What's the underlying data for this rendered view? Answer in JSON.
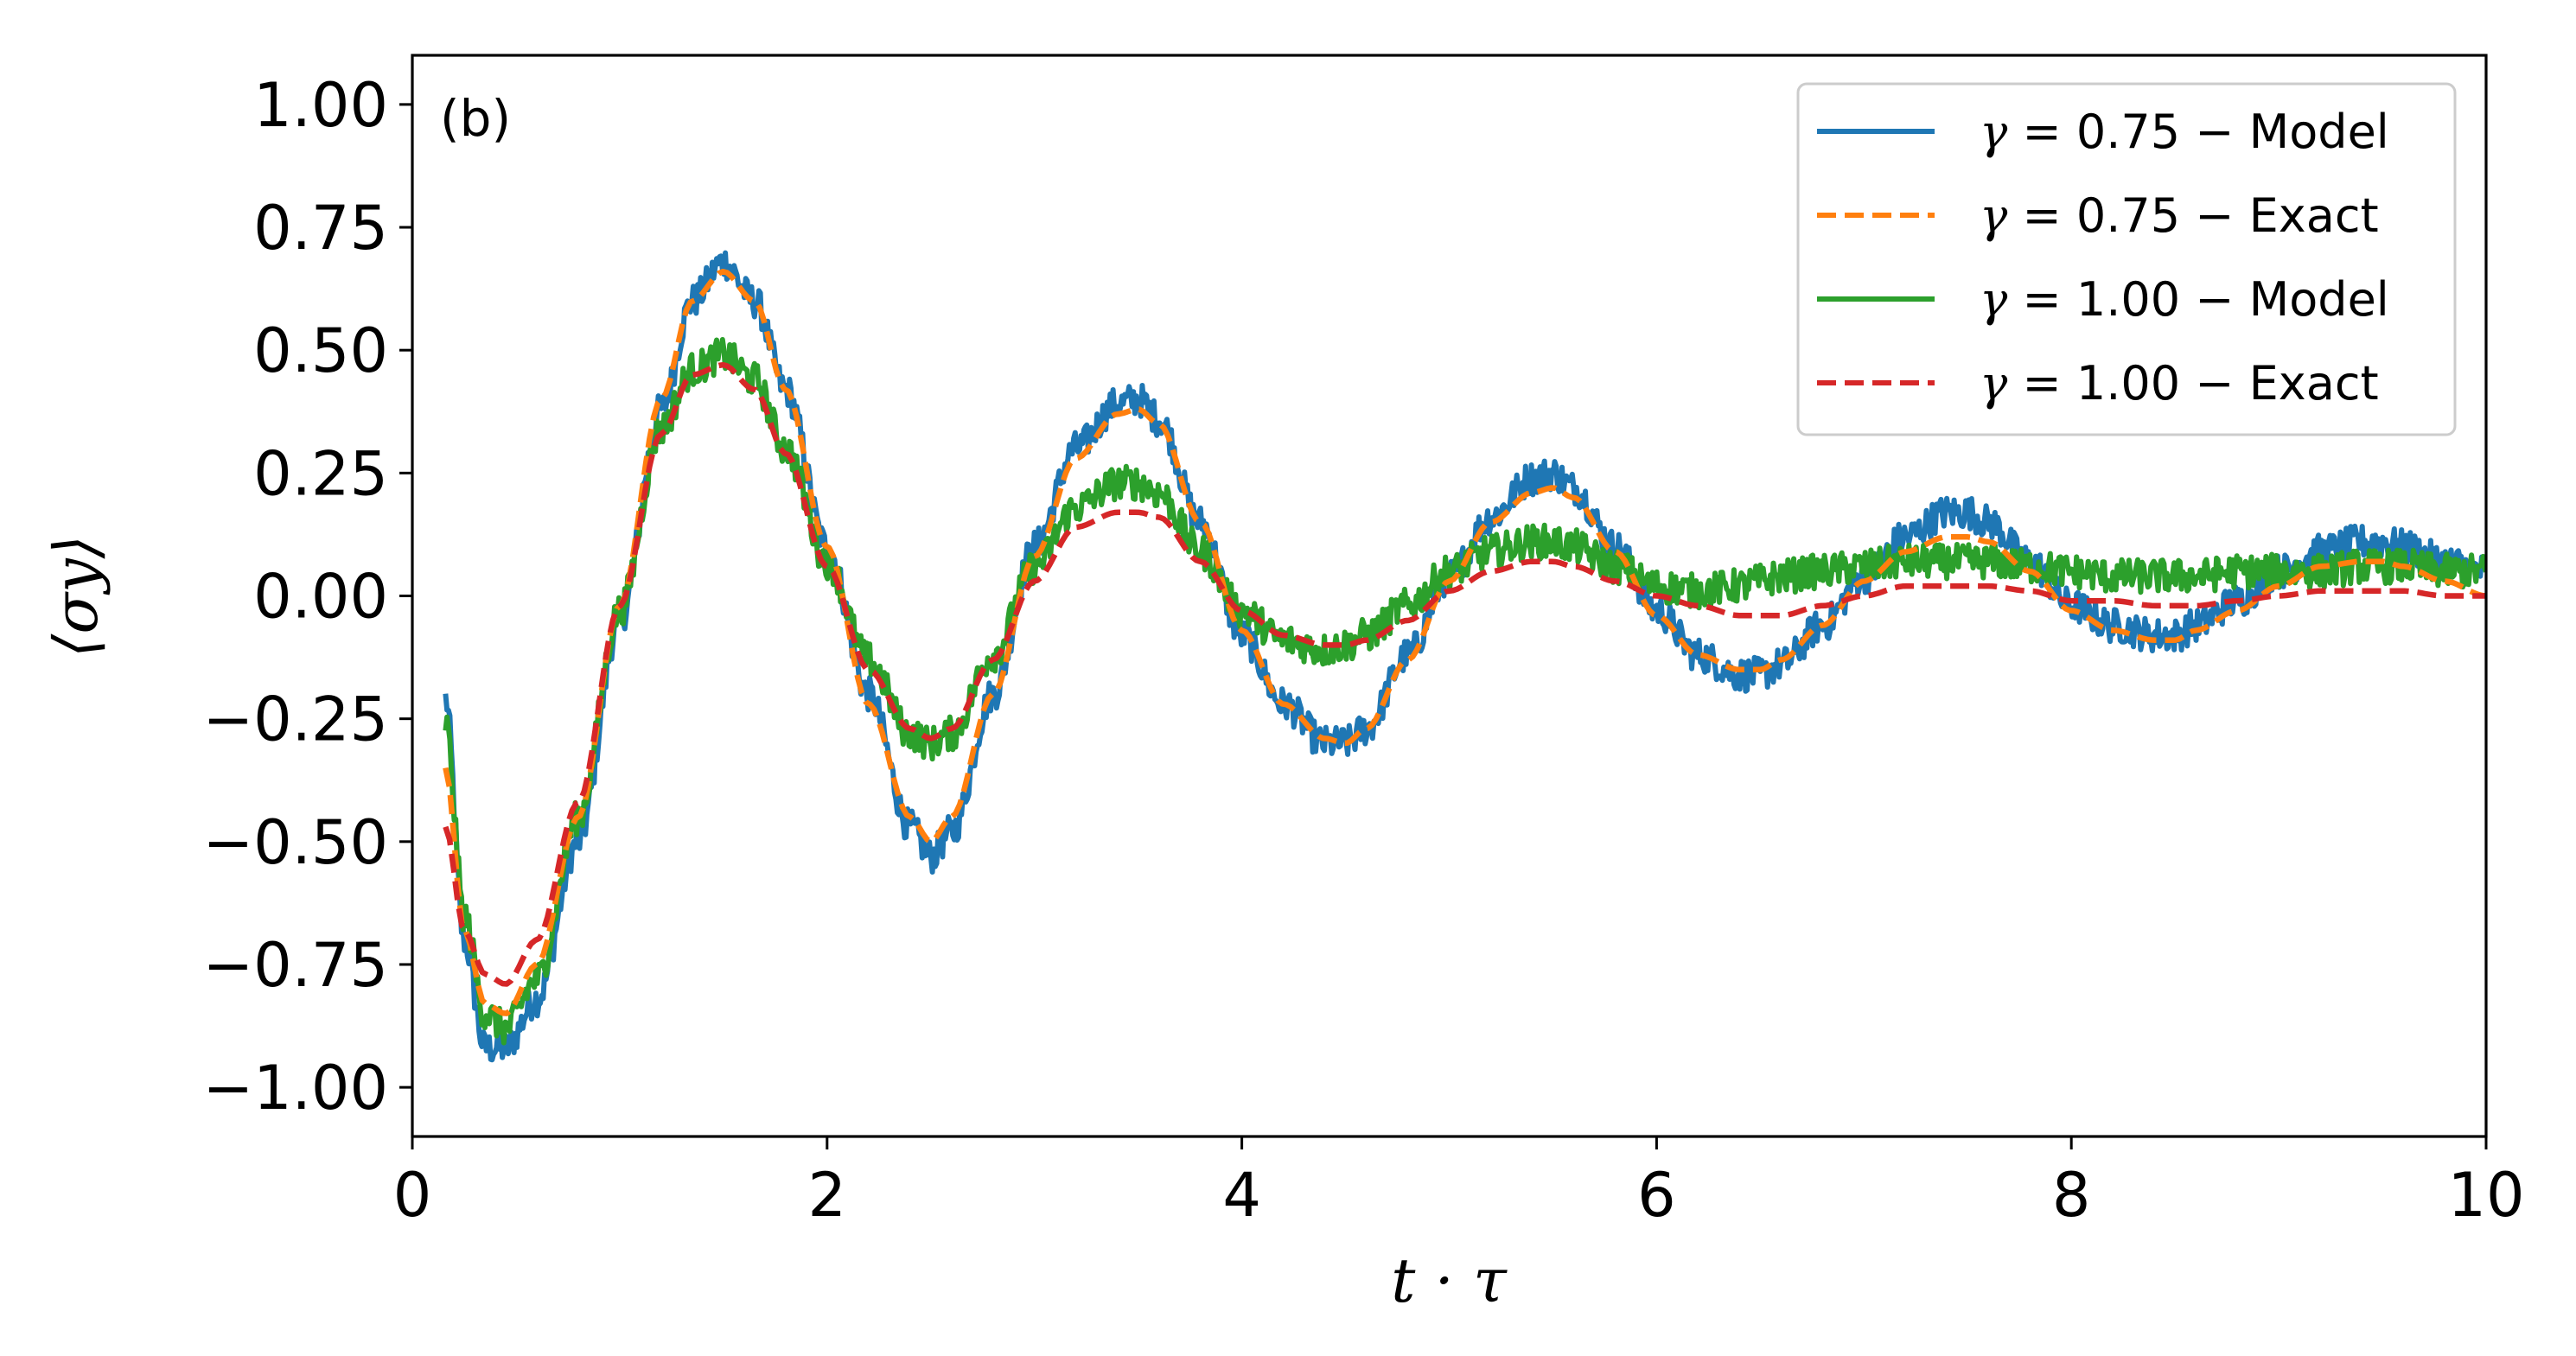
{
  "chart_data": {
    "type": "line",
    "panel_label": "(b)",
    "xlabel": "t · τ",
    "ylabel": "⟨σy⟩",
    "xlim": [
      0,
      10
    ],
    "ylim": [
      -1.1,
      1.1
    ],
    "xticks": [
      0,
      2,
      4,
      6,
      8,
      10
    ],
    "xtick_labels": [
      "0",
      "2",
      "4",
      "6",
      "8",
      "10"
    ],
    "yticks": [
      -1.0,
      -0.75,
      -0.5,
      -0.25,
      0.0,
      0.25,
      0.5,
      0.75,
      1.0
    ],
    "ytick_labels": [
      "−1.00",
      "−0.75",
      "−0.50",
      "−0.25",
      "0.00",
      "0.25",
      "0.50",
      "0.75",
      "1.00"
    ],
    "grid": false,
    "legend_position": "top-right",
    "series": [
      {
        "name": "γ = 0.75 − Model",
        "legend_symbol": "γ",
        "legend_text": " = 0.75 − Model",
        "color": "#1f77b4",
        "style": "solid",
        "noisy": true,
        "x": [
          0.16,
          0.25,
          0.35,
          0.45,
          0.6,
          0.8,
          1.0,
          1.2,
          1.35,
          1.5,
          1.65,
          1.8,
          2.0,
          2.2,
          2.4,
          2.5,
          2.6,
          2.8,
          3.0,
          3.2,
          3.4,
          3.5,
          3.6,
          3.8,
          4.0,
          4.2,
          4.4,
          4.5,
          4.6,
          4.8,
          5.0,
          5.2,
          5.4,
          5.5,
          5.6,
          5.8,
          6.0,
          6.2,
          6.4,
          6.5,
          6.6,
          6.8,
          7.0,
          7.2,
          7.4,
          7.5,
          7.6,
          7.8,
          8.0,
          8.2,
          8.4,
          8.5,
          8.6,
          8.8,
          9.0,
          9.2,
          9.4,
          9.5,
          9.6,
          9.8,
          10.0
        ],
        "y": [
          -0.21,
          -0.7,
          -0.92,
          -0.92,
          -0.82,
          -0.5,
          -0.05,
          0.38,
          0.6,
          0.68,
          0.6,
          0.42,
          0.1,
          -0.2,
          -0.47,
          -0.53,
          -0.48,
          -0.2,
          0.1,
          0.3,
          0.39,
          0.4,
          0.36,
          0.15,
          -0.08,
          -0.22,
          -0.3,
          -0.3,
          -0.27,
          -0.12,
          0.04,
          0.16,
          0.24,
          0.25,
          0.22,
          0.1,
          -0.03,
          -0.12,
          -0.16,
          -0.16,
          -0.14,
          -0.06,
          0.04,
          0.12,
          0.17,
          0.17,
          0.15,
          0.07,
          -0.02,
          -0.06,
          -0.08,
          -0.08,
          -0.06,
          -0.01,
          0.05,
          0.09,
          0.11,
          0.11,
          0.1,
          0.07,
          0.05
        ]
      },
      {
        "name": "γ = 0.75 − Exact",
        "legend_symbol": "γ",
        "legend_text": " = 0.75 − Exact",
        "color": "#ff7f0e",
        "style": "dashed",
        "noisy": false,
        "x": [
          0.16,
          0.25,
          0.35,
          0.45,
          0.6,
          0.8,
          1.0,
          1.2,
          1.35,
          1.5,
          1.65,
          1.8,
          2.0,
          2.2,
          2.4,
          2.5,
          2.6,
          2.8,
          3.0,
          3.2,
          3.4,
          3.5,
          3.6,
          3.8,
          4.0,
          4.2,
          4.4,
          4.5,
          4.6,
          4.8,
          5.0,
          5.2,
          5.4,
          5.5,
          5.6,
          5.8,
          6.0,
          6.2,
          6.4,
          6.5,
          6.6,
          6.8,
          7.0,
          7.2,
          7.4,
          7.5,
          7.6,
          7.8,
          8.0,
          8.2,
          8.4,
          8.5,
          8.6,
          8.8,
          9.0,
          9.2,
          9.4,
          9.5,
          9.6,
          9.8,
          10.0
        ],
        "y": [
          -0.35,
          -0.68,
          -0.83,
          -0.85,
          -0.75,
          -0.45,
          -0.02,
          0.4,
          0.6,
          0.66,
          0.6,
          0.42,
          0.1,
          -0.22,
          -0.45,
          -0.5,
          -0.45,
          -0.2,
          0.08,
          0.28,
          0.37,
          0.38,
          0.35,
          0.15,
          -0.07,
          -0.22,
          -0.29,
          -0.3,
          -0.27,
          -0.13,
          0.03,
          0.15,
          0.21,
          0.22,
          0.2,
          0.09,
          -0.04,
          -0.12,
          -0.15,
          -0.15,
          -0.13,
          -0.06,
          0.03,
          0.09,
          0.12,
          0.12,
          0.11,
          0.05,
          -0.03,
          -0.07,
          -0.09,
          -0.09,
          -0.07,
          -0.03,
          0.02,
          0.06,
          0.07,
          0.07,
          0.06,
          0.03,
          0.0
        ]
      },
      {
        "name": "γ = 1.00 − Model",
        "legend_symbol": "γ",
        "legend_text": " = 1.00 − Model",
        "color": "#2ca02c",
        "style": "solid",
        "noisy": true,
        "x": [
          0.16,
          0.25,
          0.35,
          0.45,
          0.6,
          0.8,
          1.0,
          1.2,
          1.35,
          1.5,
          1.65,
          1.8,
          2.0,
          2.2,
          2.4,
          2.5,
          2.6,
          2.8,
          3.0,
          3.2,
          3.4,
          3.5,
          3.6,
          3.8,
          4.0,
          4.2,
          4.4,
          4.5,
          4.6,
          4.8,
          5.0,
          5.2,
          5.4,
          5.5,
          5.6,
          5.8,
          6.0,
          6.2,
          6.4,
          6.5,
          6.6,
          6.8,
          7.0,
          7.2,
          7.4,
          7.5,
          7.6,
          7.8,
          8.0,
          8.2,
          8.4,
          8.5,
          8.6,
          8.8,
          9.0,
          9.2,
          9.4,
          9.5,
          9.6,
          9.8,
          10.0
        ],
        "y": [
          -0.26,
          -0.65,
          -0.85,
          -0.88,
          -0.78,
          -0.45,
          -0.03,
          0.34,
          0.46,
          0.49,
          0.44,
          0.3,
          0.07,
          -0.13,
          -0.28,
          -0.3,
          -0.28,
          -0.12,
          0.06,
          0.18,
          0.23,
          0.23,
          0.21,
          0.09,
          -0.03,
          -0.09,
          -0.11,
          -0.1,
          -0.08,
          -0.02,
          0.05,
          0.09,
          0.11,
          0.11,
          0.1,
          0.06,
          0.02,
          0.01,
          0.02,
          0.03,
          0.04,
          0.05,
          0.06,
          0.07,
          0.07,
          0.07,
          0.07,
          0.06,
          0.05,
          0.04,
          0.04,
          0.04,
          0.04,
          0.05,
          0.05,
          0.05,
          0.06,
          0.06,
          0.06,
          0.05,
          0.05
        ]
      },
      {
        "name": "γ = 1.00 − Exact",
        "legend_symbol": "γ",
        "legend_text": " = 1.00 − Exact",
        "color": "#d62728",
        "style": "dashed",
        "noisy": false,
        "x": [
          0.16,
          0.25,
          0.35,
          0.45,
          0.6,
          0.8,
          1.0,
          1.2,
          1.35,
          1.5,
          1.65,
          1.8,
          2.0,
          2.2,
          2.4,
          2.5,
          2.6,
          2.8,
          3.0,
          3.2,
          3.4,
          3.5,
          3.6,
          3.8,
          4.0,
          4.2,
          4.4,
          4.5,
          4.6,
          4.8,
          5.0,
          5.2,
          5.4,
          5.5,
          5.6,
          5.8,
          6.0,
          6.2,
          6.4,
          6.5,
          6.6,
          6.8,
          7.0,
          7.2,
          7.4,
          7.5,
          7.6,
          7.8,
          8.0,
          8.2,
          8.4,
          8.5,
          8.6,
          8.8,
          9.0,
          9.2,
          9.4,
          9.5,
          9.6,
          9.8,
          10.0
        ],
        "y": [
          -0.47,
          -0.68,
          -0.77,
          -0.79,
          -0.7,
          -0.42,
          -0.02,
          0.33,
          0.45,
          0.47,
          0.42,
          0.29,
          0.06,
          -0.15,
          -0.27,
          -0.29,
          -0.27,
          -0.13,
          0.03,
          0.14,
          0.17,
          0.17,
          0.16,
          0.07,
          -0.03,
          -0.08,
          -0.1,
          -0.1,
          -0.09,
          -0.05,
          0.01,
          0.05,
          0.07,
          0.07,
          0.06,
          0.03,
          0.0,
          -0.02,
          -0.04,
          -0.04,
          -0.04,
          -0.02,
          0.0,
          0.02,
          0.02,
          0.02,
          0.02,
          0.01,
          -0.01,
          -0.01,
          -0.02,
          -0.02,
          -0.02,
          -0.01,
          0.0,
          0.01,
          0.01,
          0.01,
          0.01,
          0.0,
          0.0
        ]
      }
    ]
  }
}
